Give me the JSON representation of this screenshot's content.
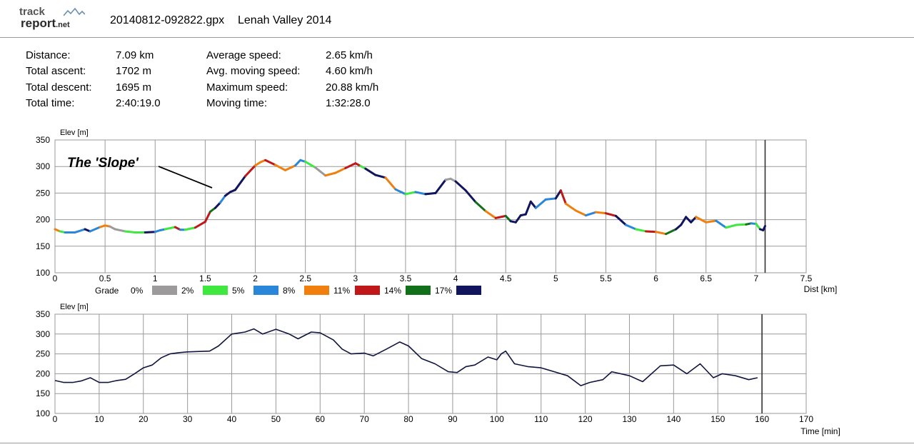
{
  "header": {
    "logo_track": "track",
    "logo_report": "report",
    "logo_net": ".net",
    "filename": "20140812-092822.gpx",
    "track_title": "Lenah Valley 2014"
  },
  "stats": {
    "distance_label": "Distance:",
    "distance_value": "7.09 km",
    "ascent_label": "Total ascent:",
    "ascent_value": "1702 m",
    "descent_label": "Total descent:",
    "descent_value": "1695 m",
    "total_time_label": "Total time:",
    "total_time_value": "2:40:19.0",
    "avg_speed_label": "Average speed:",
    "avg_speed_value": "2.65 km/h",
    "avg_moving_label": "Avg. moving speed:",
    "avg_moving_value": "4.60 km/h",
    "max_speed_label": "Maximum speed:",
    "max_speed_value": "20.88 km/h",
    "moving_time_label": "Moving time:",
    "moving_time_value": "1:32:28.0"
  },
  "annotation": {
    "text": "The 'Slope'"
  },
  "colors": {
    "grade_0": "#9c9a9a",
    "grade_2": "#3ee83e",
    "grade_5": "#2a86d8",
    "grade_8": "#f07f0e",
    "grade_11": "#c01818",
    "grade_14": "#12701a",
    "grade_17": "#10155e",
    "line": "#101540",
    "grid": "#9a9a9a"
  },
  "chart_data": [
    {
      "type": "line",
      "ylabel": "Elev [m]",
      "xlabel": "Dist [km]",
      "xlim": [
        0,
        7.5
      ],
      "ylim": [
        100,
        350
      ],
      "xticks": [
        "0",
        "0.5",
        "1",
        "1.5",
        "2",
        "2.5",
        "3",
        "3.5",
        "4",
        "4.5",
        "5",
        "5.5",
        "6",
        "6.5",
        "7",
        "7.5"
      ],
      "yticks": [
        "100",
        "150",
        "200",
        "250",
        "300",
        "350"
      ],
      "marker_x": 7.09,
      "legend": {
        "title": "Grade",
        "entries": [
          "0%",
          "2%",
          "5%",
          "8%",
          "11%",
          "14%",
          "17%"
        ]
      },
      "x": [
        0,
        0.05,
        0.1,
        0.2,
        0.3,
        0.35,
        0.45,
        0.5,
        0.55,
        0.6,
        0.7,
        0.8,
        0.9,
        1.0,
        1.05,
        1.1,
        1.2,
        1.25,
        1.3,
        1.4,
        1.5,
        1.55,
        1.6,
        1.65,
        1.7,
        1.75,
        1.8,
        1.9,
        2.0,
        2.05,
        2.1,
        2.2,
        2.3,
        2.4,
        2.45,
        2.5,
        2.6,
        2.7,
        2.8,
        2.9,
        3.0,
        3.05,
        3.1,
        3.2,
        3.3,
        3.4,
        3.5,
        3.6,
        3.7,
        3.8,
        3.9,
        3.95,
        4.0,
        4.1,
        4.2,
        4.3,
        4.4,
        4.5,
        4.55,
        4.6,
        4.65,
        4.7,
        4.75,
        4.8,
        4.9,
        5.0,
        5.05,
        5.1,
        5.2,
        5.3,
        5.4,
        5.5,
        5.6,
        5.7,
        5.8,
        5.9,
        6.0,
        6.1,
        6.2,
        6.25,
        6.3,
        6.35,
        6.4,
        6.5,
        6.6,
        6.7,
        6.8,
        6.9,
        6.95,
        7.0,
        7.04,
        7.07,
        7.09
      ],
      "y": [
        182,
        178,
        176,
        176,
        182,
        178,
        186,
        189,
        187,
        182,
        178,
        176,
        176,
        177,
        180,
        182,
        186,
        181,
        181,
        185,
        196,
        215,
        222,
        232,
        245,
        252,
        256,
        282,
        302,
        308,
        312,
        303,
        293,
        302,
        312,
        309,
        298,
        283,
        288,
        297,
        306,
        301,
        296,
        284,
        279,
        257,
        248,
        252,
        248,
        250,
        275,
        277,
        272,
        255,
        233,
        216,
        203,
        207,
        197,
        195,
        208,
        210,
        234,
        222,
        238,
        240,
        255,
        230,
        217,
        208,
        214,
        212,
        207,
        190,
        182,
        178,
        177,
        173,
        182,
        190,
        205,
        195,
        205,
        195,
        198,
        185,
        190,
        191,
        193,
        192,
        182,
        180,
        188
      ],
      "grade_colors": [
        "grade_8",
        "grade_2",
        "grade_5",
        "grade_5",
        "grade_17",
        "grade_5",
        "grade_8",
        "grade_8",
        "grade_0",
        "grade_0",
        "grade_2",
        "grade_2",
        "grade_17",
        "grade_5",
        "grade_5",
        "grade_2",
        "grade_11",
        "grade_5",
        "grade_2",
        "grade_11",
        "grade_11",
        "grade_14",
        "grade_17",
        "grade_5",
        "grade_17",
        "grade_17",
        "grade_17",
        "grade_11",
        "grade_8",
        "grade_8",
        "grade_11",
        "grade_8",
        "grade_8",
        "grade_5",
        "grade_5",
        "grade_2",
        "grade_0",
        "grade_8",
        "grade_8",
        "grade_11",
        "grade_11",
        "grade_2",
        "grade_17",
        "grade_17",
        "grade_8",
        "grade_5",
        "grade_2",
        "grade_5",
        "grade_17",
        "grade_17",
        "grade_0",
        "grade_0",
        "grade_17",
        "grade_17",
        "grade_14",
        "grade_8",
        "grade_11",
        "grade_14",
        "grade_17",
        "grade_17",
        "grade_17",
        "grade_17",
        "grade_17",
        "grade_5",
        "grade_5",
        "grade_17",
        "grade_11",
        "grade_8",
        "grade_8",
        "grade_5",
        "grade_8",
        "grade_11",
        "grade_17",
        "grade_5",
        "grade_2",
        "grade_11",
        "grade_8",
        "grade_14",
        "grade_17",
        "grade_17",
        "grade_17",
        "grade_17",
        "grade_8",
        "grade_8",
        "grade_5",
        "grade_2",
        "grade_2",
        "grade_14",
        "grade_5",
        "grade_2",
        "grade_17",
        "grade_17"
      ]
    },
    {
      "type": "line",
      "ylabel": "Elev [m]",
      "xlabel": "Time [min]",
      "xlim": [
        0,
        170
      ],
      "ylim": [
        100,
        350
      ],
      "xticks": [
        "0",
        "10",
        "20",
        "30",
        "40",
        "50",
        "60",
        "70",
        "80",
        "90",
        "100",
        "110",
        "120",
        "130",
        "140",
        "150",
        "160",
        "170"
      ],
      "yticks": [
        "100",
        "150",
        "200",
        "250",
        "300",
        "350"
      ],
      "marker_x": 160,
      "x": [
        0,
        2,
        4,
        6,
        8,
        10,
        12,
        14,
        16,
        18,
        20,
        22,
        24,
        26,
        28,
        30,
        35,
        37,
        40,
        43,
        45,
        47,
        50,
        53,
        55,
        58,
        60,
        63,
        65,
        67,
        70,
        72,
        75,
        78,
        80,
        83,
        86,
        89,
        91,
        93,
        95,
        98,
        100,
        101,
        102,
        104,
        107,
        110,
        113,
        116,
        119,
        121,
        124,
        126,
        130,
        133,
        137,
        140,
        143,
        146,
        149,
        151,
        154,
        157,
        159
      ],
      "y": [
        183,
        178,
        178,
        182,
        190,
        178,
        178,
        183,
        186,
        200,
        215,
        222,
        240,
        250,
        253,
        255,
        257,
        270,
        300,
        305,
        313,
        300,
        312,
        300,
        288,
        305,
        303,
        285,
        262,
        250,
        252,
        245,
        262,
        280,
        270,
        238,
        225,
        205,
        203,
        218,
        222,
        242,
        235,
        250,
        257,
        225,
        218,
        215,
        205,
        195,
        170,
        178,
        185,
        205,
        195,
        180,
        220,
        222,
        200,
        225,
        190,
        200,
        195,
        185,
        190
      ]
    }
  ]
}
